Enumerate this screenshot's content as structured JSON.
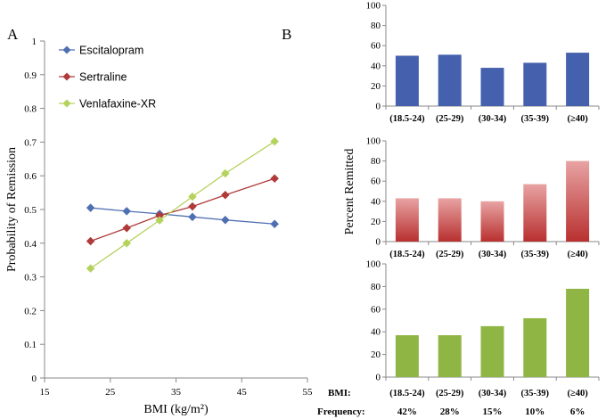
{
  "panel_a_label": "A",
  "panel_b_label": "B",
  "footer": {
    "bmi_label": "BMI:",
    "frequency_label": "Frequency:",
    "frequencies": [
      "42%",
      "28%",
      "15%",
      "10%",
      "6%"
    ]
  },
  "chart_data": [
    {
      "type": "line",
      "panel": "A",
      "xlabel": "BMI (kg/m²)",
      "ylabel": "Probability of Remission",
      "xlim": [
        15,
        55
      ],
      "ylim": [
        0,
        1
      ],
      "x_ticks": [
        15,
        25,
        35,
        45,
        55
      ],
      "y_ticks": [
        0,
        0.1,
        0.2,
        0.3,
        0.4,
        0.5,
        0.6,
        0.7,
        0.8,
        0.9,
        1
      ],
      "y_tick_labels": [
        "0",
        "0.1",
        "0.2",
        "0.3",
        "0.4",
        "0.5",
        "0.6",
        "0.7",
        "0.8",
        "0.9",
        "1"
      ],
      "x": [
        22,
        27.5,
        32.5,
        37.5,
        42.5,
        50
      ],
      "legend_position": "top-left",
      "grid": false,
      "series": [
        {
          "name": "Escitalopram",
          "color": "#4f6fb3",
          "marker": "diamond",
          "values": [
            0.505,
            0.495,
            0.487,
            0.478,
            0.469,
            0.457
          ]
        },
        {
          "name": "Sertraline",
          "color": "#b03a3a",
          "marker": "diamond",
          "values": [
            0.406,
            0.445,
            0.482,
            0.509,
            0.543,
            0.592
          ]
        },
        {
          "name": "Venlafaxine-XR",
          "color": "#b5d25d",
          "marker": "diamond",
          "values": [
            0.325,
            0.4,
            0.468,
            0.538,
            0.607,
            0.702
          ]
        }
      ]
    },
    {
      "type": "bar",
      "panel": "B",
      "shared_ylabel": "Percent Remitted",
      "categories": [
        "(18.5-24)",
        "(25-29)",
        "(30-34)",
        "(35-39)",
        "(≥40)"
      ],
      "ylim": [
        0,
        100
      ],
      "y_ticks": [
        0,
        20,
        40,
        60,
        80,
        100
      ],
      "grid": false,
      "subplots": [
        {
          "color": "#4561ad",
          "style": "solid",
          "values": [
            50,
            51,
            38,
            43,
            53
          ]
        },
        {
          "color": "#b8302f",
          "style": "gradient",
          "values": [
            43,
            43,
            40,
            57,
            80
          ]
        },
        {
          "color": "#8fb544",
          "style": "solid",
          "values": [
            37,
            37,
            45,
            52,
            78
          ]
        }
      ]
    }
  ]
}
